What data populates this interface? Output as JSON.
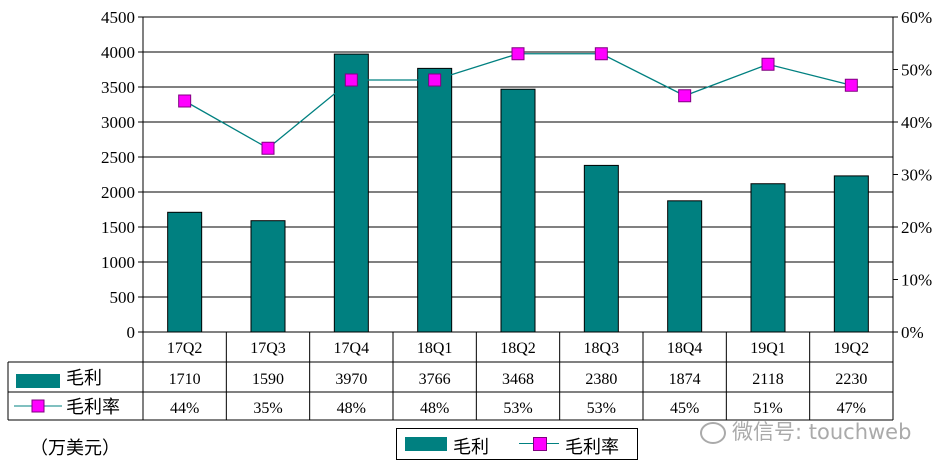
{
  "chart_data": {
    "type": "bar",
    "categories": [
      "17Q2",
      "17Q3",
      "17Q4",
      "18Q1",
      "18Q2",
      "18Q3",
      "18Q4",
      "19Q1",
      "19Q2"
    ],
    "series": [
      {
        "name": "毛利",
        "type": "bar",
        "axis": "left",
        "values": [
          1710,
          1590,
          3970,
          3766,
          3468,
          2380,
          1874,
          2118,
          2230
        ],
        "color": "#008080"
      },
      {
        "name": "毛利率",
        "type": "line",
        "axis": "right",
        "values": [
          44,
          35,
          48,
          48,
          53,
          53,
          45,
          51,
          47
        ],
        "labels": [
          "44%",
          "35%",
          "48%",
          "48%",
          "53%",
          "53%",
          "45%",
          "51%",
          "47%"
        ],
        "color": "#008080",
        "marker_color": "#ff00ff"
      }
    ],
    "ylim_left": [
      0,
      4500
    ],
    "yticks_left": [
      "0",
      "500",
      "1000",
      "1500",
      "2000",
      "2500",
      "3000",
      "3500",
      "4000",
      "4500"
    ],
    "ylim_right": [
      0,
      60
    ],
    "yticks_right": [
      "0%",
      "10%",
      "20%",
      "30%",
      "40%",
      "50%",
      "60%"
    ],
    "grid": true,
    "data_table": true,
    "legend_placement": "bottom-center",
    "unit_label": "（万美元）"
  },
  "watermark": "微信号: touchweb"
}
